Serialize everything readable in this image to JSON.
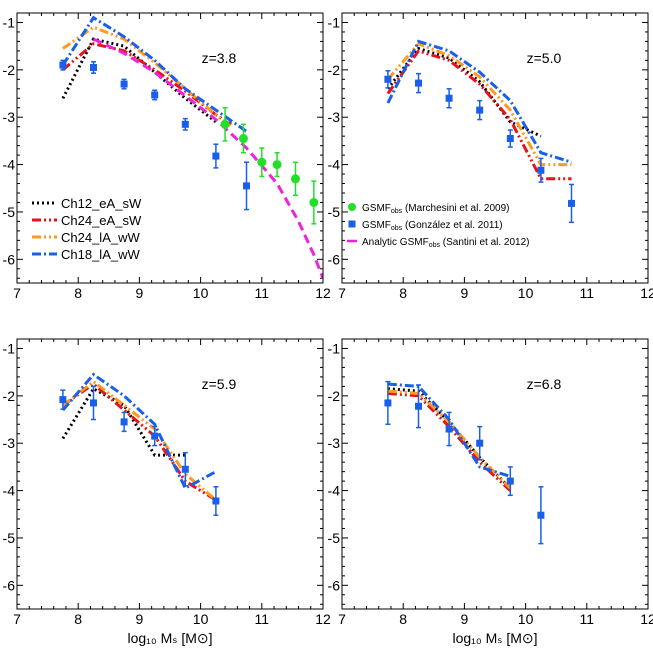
{
  "colors": {
    "ch12": "#000000",
    "ch24_eA": "#e8121c",
    "ch24_lA": "#ff9a1e",
    "ch18": "#1a5fe8",
    "marchesini": "#22e028",
    "gonzalez": "#1a5fe8",
    "santini": "#ee22dd"
  },
  "chart_data": [
    {
      "type": "line",
      "title": "z=3.8",
      "xlabel": "",
      "ylabel": "",
      "xlim": [
        7,
        12
      ],
      "ylim": [
        -6.5,
        -0.8
      ],
      "xticks": [
        "7",
        "8",
        "9",
        "10",
        "11",
        "12"
      ],
      "yticks": [
        "-1",
        "-2",
        "-3",
        "-4",
        "-5",
        "-6"
      ],
      "legend": {
        "placement": "bottom-left",
        "entries": [
          {
            "label": "Ch12_eA_sW",
            "series": "ch12"
          },
          {
            "label": "Ch24_eA_sW",
            "series": "ch24_eA"
          },
          {
            "label": "Ch24_lA_wW",
            "series": "ch24_lA"
          },
          {
            "label": "Ch18_lA_wW",
            "series": "ch18"
          }
        ]
      },
      "series": [
        {
          "key": "ch12",
          "x": [
            7.75,
            8.25,
            8.75,
            9.25,
            9.75,
            10.25
          ],
          "y": [
            -2.6,
            -1.35,
            -1.5,
            -2.05,
            -2.6,
            -3.1
          ]
        },
        {
          "key": "ch24_eA",
          "x": [
            7.75,
            8.25,
            8.75,
            9.25,
            9.75,
            10.25,
            10.5
          ],
          "y": [
            -2.0,
            -1.45,
            -1.6,
            -2.0,
            -2.45,
            -2.95,
            -3.15
          ]
        },
        {
          "key": "ch24_lA",
          "x": [
            7.75,
            8.25,
            8.75,
            9.25,
            9.75,
            10.25,
            10.5
          ],
          "y": [
            -1.55,
            -1.1,
            -1.35,
            -1.85,
            -2.4,
            -2.95,
            -3.2
          ]
        },
        {
          "key": "ch18",
          "x": [
            7.75,
            8.25,
            8.75,
            9.25,
            9.75,
            10.25,
            10.75
          ],
          "y": [
            -1.9,
            -0.9,
            -1.3,
            -1.8,
            -2.4,
            -2.85,
            -3.3
          ]
        },
        {
          "key": "santini",
          "x": [
            8.25,
            8.75,
            9.25,
            9.75,
            10.25,
            10.75,
            11.25,
            11.6,
            11.85,
            12.0
          ],
          "y": [
            -1.35,
            -1.65,
            -2.05,
            -2.55,
            -3.05,
            -3.65,
            -4.4,
            -5.2,
            -5.9,
            -6.4
          ]
        }
      ],
      "errorbars": [
        {
          "key": "gonzalez",
          "x": [
            7.75,
            8.25,
            8.75,
            9.25,
            9.75,
            10.25,
            10.75
          ],
          "y": [
            -1.9,
            -1.95,
            -2.3,
            -2.53,
            -3.15,
            -3.82,
            -4.45
          ],
          "err": [
            0.1,
            0.12,
            0.1,
            0.1,
            0.12,
            0.25,
            0.5
          ]
        },
        {
          "key": "marchesini",
          "x": [
            10.4,
            10.7,
            11.0,
            11.25,
            11.55,
            11.85
          ],
          "y": [
            -3.15,
            -3.45,
            -3.95,
            -4.0,
            -4.3,
            -4.8
          ],
          "err": [
            0.35,
            0.3,
            0.3,
            0.25,
            0.35,
            0.45
          ]
        }
      ]
    },
    {
      "type": "line",
      "title": "z=5.0",
      "xlabel": "",
      "ylabel": "",
      "xlim": [
        7,
        12
      ],
      "ylim": [
        -6.5,
        -0.8
      ],
      "xticks": [
        "7",
        "8",
        "9",
        "10",
        "11",
        "12"
      ],
      "yticks": [
        "-1",
        "-2",
        "-3",
        "-4",
        "-5",
        "-6"
      ],
      "legend": {
        "placement": "bottom-left",
        "entries": [
          {
            "label": "GSMF",
            "sub": "obs",
            "tail": " (Marchesini et al. 2009)",
            "marker": "circle",
            "series": "marchesini"
          },
          {
            "label": "GSMF",
            "sub": "obs",
            "tail": " (González et al. 2011)",
            "marker": "square",
            "series": "gonzalez"
          },
          {
            "label": "Analytic GSMF",
            "sub": "obs",
            "tail": " (Santini et al. 2012)",
            "marker": "dash",
            "series": "santini"
          }
        ]
      },
      "series": [
        {
          "key": "ch12",
          "x": [
            7.75,
            8.25,
            8.75,
            9.25,
            9.75,
            10.25
          ],
          "y": [
            -2.4,
            -1.55,
            -1.75,
            -2.25,
            -3.1,
            -3.4
          ]
        },
        {
          "key": "ch24_eA",
          "x": [
            7.75,
            8.25,
            8.75,
            9.25,
            9.75,
            10.25,
            10.75
          ],
          "y": [
            -2.5,
            -1.6,
            -1.8,
            -2.3,
            -3.05,
            -4.3,
            -4.3
          ]
        },
        {
          "key": "ch24_lA",
          "x": [
            7.75,
            8.25,
            8.75,
            9.25,
            9.75,
            10.25,
            10.75
          ],
          "y": [
            -2.2,
            -1.45,
            -1.7,
            -2.15,
            -2.85,
            -4.0,
            -4.0
          ]
        },
        {
          "key": "ch18",
          "x": [
            7.75,
            8.25,
            8.75,
            9.25,
            9.75,
            10.25,
            10.75
          ],
          "y": [
            -2.7,
            -1.4,
            -1.6,
            -2.05,
            -2.65,
            -3.75,
            -3.95
          ]
        }
      ],
      "errorbars": [
        {
          "key": "gonzalez",
          "x": [
            7.75,
            8.25,
            8.75,
            9.25,
            9.75,
            10.25,
            10.75
          ],
          "y": [
            -2.2,
            -2.28,
            -2.6,
            -2.85,
            -3.45,
            -4.12,
            -4.82
          ],
          "err": [
            0.18,
            0.2,
            0.2,
            0.2,
            0.18,
            0.25,
            0.4
          ]
        }
      ]
    },
    {
      "type": "line",
      "title": "z=5.9",
      "xlabel": "log₁₀ Mₛ [M⊙]",
      "ylabel": "",
      "xlim": [
        7,
        12
      ],
      "ylim": [
        -6.5,
        -0.8
      ],
      "xticks": [
        "7",
        "8",
        "9",
        "10",
        "11",
        "12"
      ],
      "yticks": [
        "-1",
        "-2",
        "-3",
        "-4",
        "-5",
        "-6"
      ],
      "series": [
        {
          "key": "ch12",
          "x": [
            7.75,
            8.25,
            8.75,
            9.25,
            9.75
          ],
          "y": [
            -2.9,
            -1.85,
            -2.2,
            -3.25,
            -3.25
          ]
        },
        {
          "key": "ch24_eA",
          "x": [
            7.75,
            8.25,
            8.75,
            9.25,
            9.75,
            10.25
          ],
          "y": [
            -2.2,
            -1.75,
            -2.3,
            -2.85,
            -3.8,
            -4.2
          ]
        },
        {
          "key": "ch24_lA",
          "x": [
            7.75,
            8.25,
            8.75,
            9.25,
            9.75,
            10.25
          ],
          "y": [
            -2.2,
            -1.7,
            -2.2,
            -2.7,
            -3.65,
            -4.2
          ]
        },
        {
          "key": "ch18",
          "x": [
            7.75,
            8.25,
            8.75,
            9.25,
            9.75,
            10.25
          ],
          "y": [
            -2.3,
            -1.55,
            -2.0,
            -2.6,
            -3.95,
            -3.6
          ]
        }
      ],
      "errorbars": [
        {
          "key": "gonzalez",
          "x": [
            7.75,
            8.25,
            8.75,
            9.25,
            9.75,
            10.25
          ],
          "y": [
            -2.08,
            -2.15,
            -2.55,
            -2.85,
            -3.55,
            -4.22
          ],
          "err": [
            0.2,
            0.35,
            0.2,
            0.2,
            0.35,
            0.3
          ]
        }
      ]
    },
    {
      "type": "line",
      "title": "z=6.8",
      "xlabel": "log₁₀ Mₛ [M⊙]",
      "ylabel": "",
      "xlim": [
        7,
        12
      ],
      "ylim": [
        -6.5,
        -0.8
      ],
      "xticks": [
        "7",
        "8",
        "9",
        "10",
        "11",
        "12"
      ],
      "yticks": [
        "-1",
        "-2",
        "-3",
        "-4",
        "-5",
        "-6"
      ],
      "series": [
        {
          "key": "ch12",
          "x": [
            7.75,
            8.25,
            8.75,
            9.25,
            9.75
          ],
          "y": [
            -1.85,
            -1.9,
            -2.55,
            -3.3,
            -3.95
          ]
        },
        {
          "key": "ch24_eA",
          "x": [
            7.75,
            8.25,
            8.75,
            9.25,
            9.75
          ],
          "y": [
            -1.95,
            -2.0,
            -2.65,
            -3.4,
            -4.0
          ]
        },
        {
          "key": "ch24_lA",
          "x": [
            7.75,
            8.25,
            8.75,
            9.25,
            9.75
          ],
          "y": [
            -1.9,
            -1.95,
            -2.55,
            -3.3,
            -3.95
          ]
        },
        {
          "key": "ch18",
          "x": [
            7.75,
            8.25,
            8.75,
            9.25,
            9.75
          ],
          "y": [
            -1.75,
            -1.8,
            -2.5,
            -3.5,
            -3.7
          ]
        }
      ],
      "errorbars": [
        {
          "key": "gonzalez",
          "x": [
            7.75,
            8.25,
            8.75,
            9.25,
            9.75,
            10.25
          ],
          "y": [
            -2.15,
            -2.22,
            -2.7,
            -3.0,
            -3.8,
            -4.52
          ],
          "err": [
            0.45,
            0.45,
            0.35,
            0.35,
            0.3,
            0.6
          ]
        }
      ]
    }
  ]
}
